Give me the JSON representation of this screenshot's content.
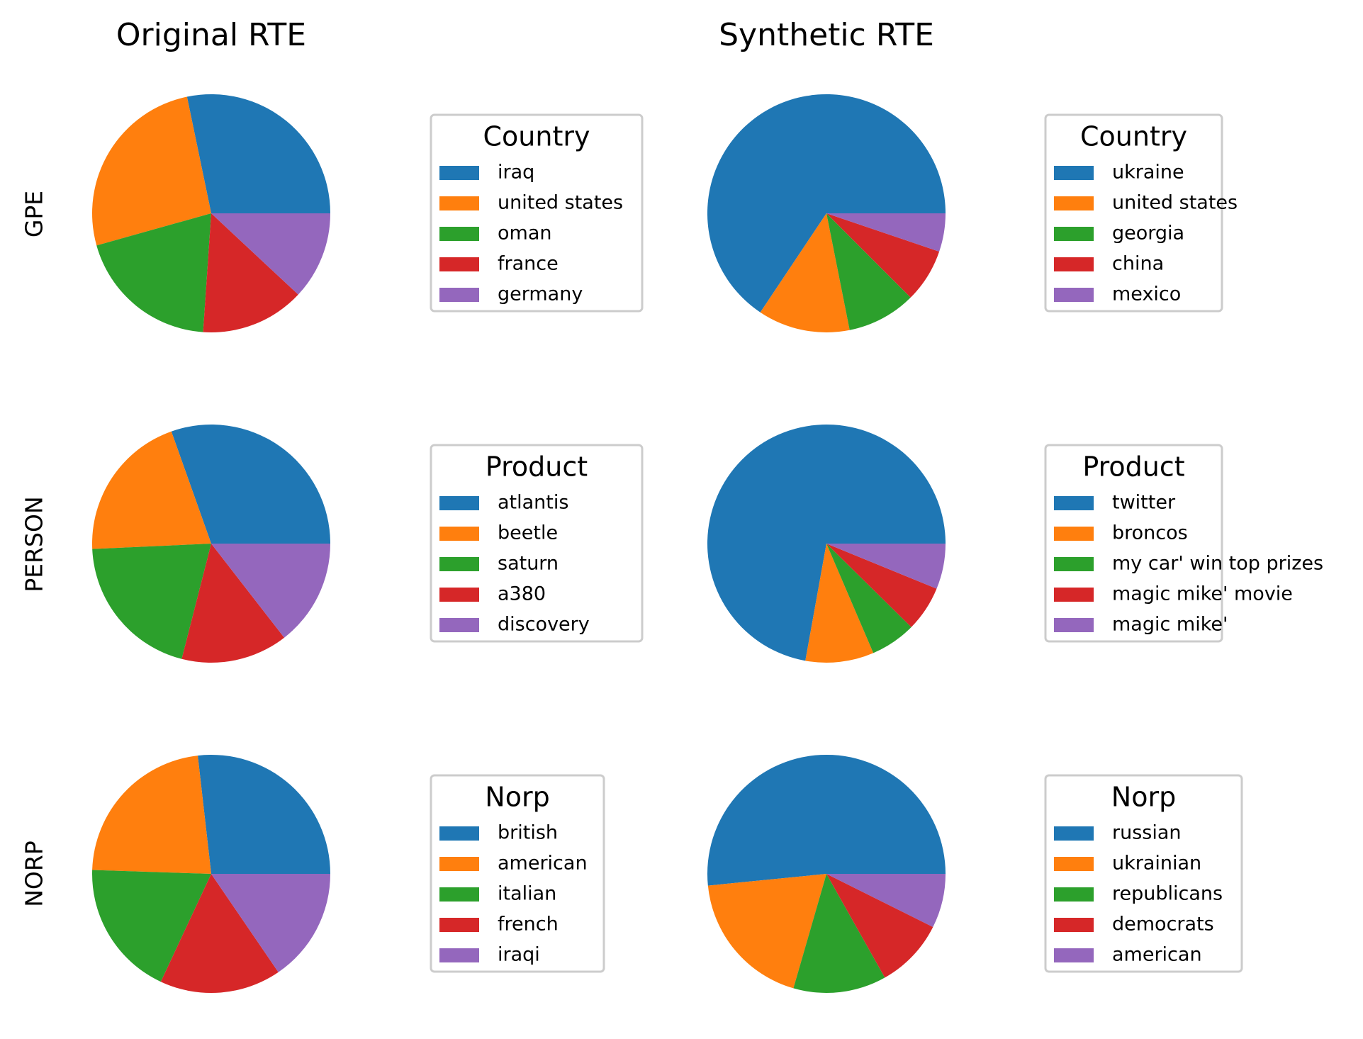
{
  "colors": [
    "#1f77b4",
    "#ff7f0e",
    "#2ca02c",
    "#d62728",
    "#9467bd"
  ],
  "column_titles": [
    "Original RTE",
    "Synthetic RTE"
  ],
  "row_labels": [
    "GPE",
    "PERSON",
    "NORP"
  ],
  "chart_data": [
    {
      "type": "pie",
      "row": "GPE",
      "column": "Original RTE",
      "legend_title": "Country",
      "labels": [
        "iraq",
        "united states",
        "oman",
        "france",
        "germany"
      ],
      "values": [
        26,
        24,
        18,
        13,
        11
      ]
    },
    {
      "type": "pie",
      "row": "GPE",
      "column": "Synthetic RTE",
      "legend_title": "Country",
      "labels": [
        "ukraine",
        "united states",
        "georgia",
        "china",
        "mexico"
      ],
      "values": [
        63,
        12,
        9,
        7,
        5
      ]
    },
    {
      "type": "pie",
      "row": "PERSON",
      "column": "Original RTE",
      "legend_title": "Product",
      "labels": [
        "atlantis",
        "beetle",
        "saturn",
        "a380",
        "discovery"
      ],
      "values": [
        21,
        14,
        14,
        10,
        10
      ]
    },
    {
      "type": "pie",
      "row": "PERSON",
      "column": "Synthetic RTE",
      "legend_title": "Product",
      "labels": [
        "twitter",
        "broncos",
        "my car' win top prizes",
        "magic mike' movie",
        "magic mike'"
      ],
      "values": [
        70,
        9,
        6,
        6,
        6
      ]
    },
    {
      "type": "pie",
      "row": "NORP",
      "column": "Original RTE",
      "legend_title": "Norp",
      "labels": [
        "british",
        "american",
        "italian",
        "french",
        "iraqi"
      ],
      "values": [
        26,
        22,
        18,
        16,
        15
      ]
    },
    {
      "type": "pie",
      "row": "NORP",
      "column": "Synthetic RTE",
      "legend_title": "Norp",
      "labels": [
        "russian",
        "ukrainian",
        "republicans",
        "democrats",
        "american"
      ],
      "values": [
        49,
        18,
        12,
        9,
        7
      ]
    }
  ]
}
